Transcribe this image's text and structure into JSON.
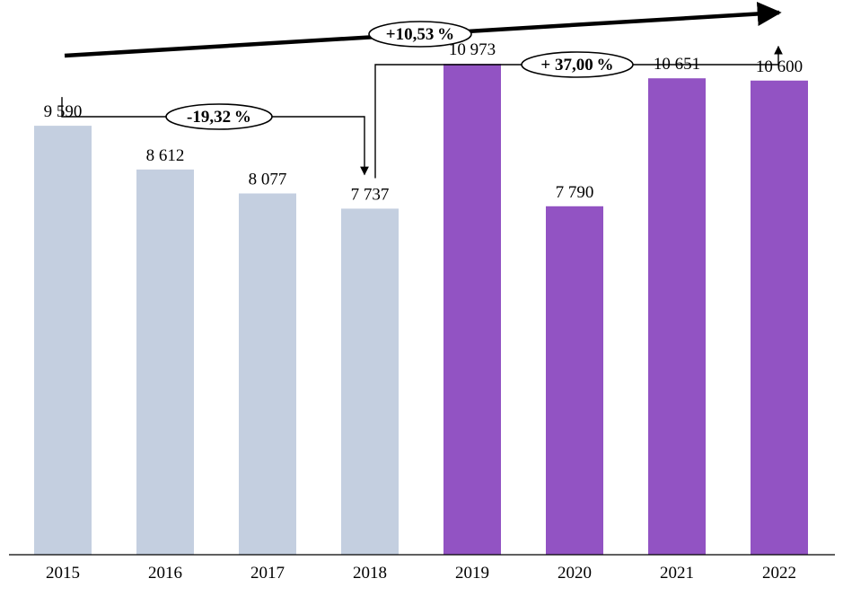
{
  "chart_data": {
    "type": "bar",
    "categories": [
      "2015",
      "2016",
      "2017",
      "2018",
      "2019",
      "2020",
      "2021",
      "2022"
    ],
    "values": [
      9590,
      8612,
      8077,
      7737,
      10973,
      7790,
      10651,
      10600
    ],
    "value_labels": [
      "9 590",
      "8 612",
      "8 077",
      "7 737",
      "10 973",
      "7 790",
      "10 651",
      "10 600"
    ],
    "bar_colors": [
      "#c4cfe0",
      "#c4cfe0",
      "#c4cfe0",
      "#c4cfe0",
      "#9253c3",
      "#9253c3",
      "#9253c3",
      "#9253c3"
    ],
    "ylim": [
      0,
      12000
    ],
    "grid": false,
    "title": "",
    "xlabel": "",
    "ylabel": "",
    "annotations": [
      {
        "label": "+10,53 %",
        "from": "2015",
        "to": "2022",
        "kind": "trend-arrow"
      },
      {
        "label": "-19,32 %",
        "from": "2015",
        "to": "2018",
        "kind": "bracket-arrow"
      },
      {
        "label": "+ 37,00 %",
        "from": "2018",
        "to": "2022",
        "kind": "bracket-arrow"
      }
    ]
  }
}
